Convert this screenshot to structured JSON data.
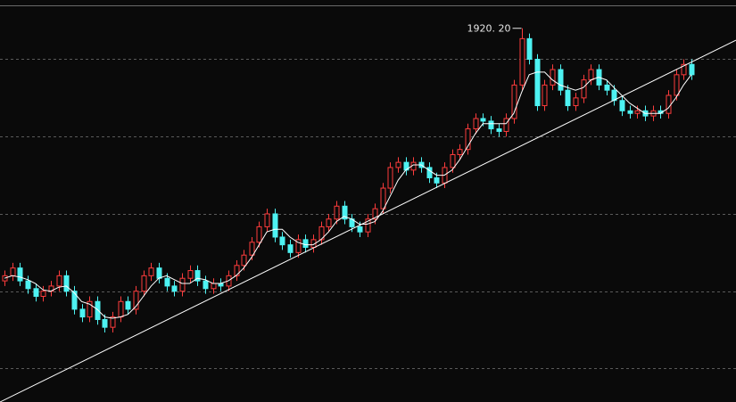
{
  "chart_data": {
    "type": "candlestick",
    "peak_label": "1920. 20",
    "peak_index": 67,
    "xlim": [
      -0.58,
      94.8
    ],
    "ylim": [
      470,
      2030
    ],
    "yticks": [
      600,
      900,
      1200,
      1500,
      1800
    ],
    "grid": true,
    "up_color": "#ff3c3c",
    "down_color": "#4df2f2",
    "line_color": "#ffffff",
    "open": [
      940,
      960,
      990,
      940,
      910,
      880,
      900,
      920,
      960,
      900,
      830,
      800,
      860,
      790,
      760,
      800,
      860,
      830,
      900,
      960,
      990,
      950,
      920,
      900,
      950,
      980,
      940,
      910,
      930,
      920,
      960,
      1000,
      1040,
      1090,
      1150,
      1200,
      1110,
      1080,
      1050,
      1100,
      1070,
      1100,
      1150,
      1180,
      1230,
      1180,
      1150,
      1130,
      1180,
      1220,
      1300,
      1380,
      1400,
      1370,
      1400,
      1380,
      1340,
      1320,
      1380,
      1430,
      1450,
      1530,
      1570,
      1560,
      1530,
      1520,
      1570,
      1700,
      1880,
      1800,
      1620,
      1700,
      1760,
      1680,
      1620,
      1650,
      1720,
      1760,
      1700,
      1680,
      1640,
      1600,
      1590,
      1600,
      1580,
      1600,
      1590,
      1660,
      1740,
      1780
    ],
    "high": [
      980,
      1010,
      1010,
      960,
      930,
      920,
      940,
      980,
      980,
      920,
      850,
      880,
      880,
      810,
      820,
      880,
      880,
      920,
      980,
      1010,
      1010,
      970,
      940,
      970,
      1000,
      1000,
      960,
      950,
      950,
      980,
      1020,
      1060,
      1110,
      1170,
      1220,
      1220,
      1130,
      1100,
      1120,
      1120,
      1120,
      1170,
      1200,
      1250,
      1250,
      1200,
      1170,
      1200,
      1240,
      1320,
      1400,
      1420,
      1420,
      1420,
      1420,
      1400,
      1360,
      1400,
      1450,
      1470,
      1550,
      1590,
      1590,
      1580,
      1550,
      1590,
      1720,
      1920.2,
      1900,
      1820,
      1720,
      1780,
      1780,
      1700,
      1670,
      1740,
      1780,
      1780,
      1720,
      1700,
      1660,
      1620,
      1620,
      1620,
      1620,
      1620,
      1680,
      1760,
      1800,
      1800
    ],
    "low": [
      920,
      940,
      920,
      890,
      860,
      860,
      880,
      900,
      880,
      810,
      780,
      780,
      770,
      740,
      740,
      780,
      810,
      810,
      880,
      940,
      930,
      900,
      880,
      880,
      930,
      920,
      890,
      890,
      900,
      900,
      940,
      980,
      1020,
      1070,
      1130,
      1090,
      1060,
      1030,
      1030,
      1050,
      1050,
      1080,
      1130,
      1160,
      1160,
      1130,
      1110,
      1110,
      1160,
      1200,
      1280,
      1360,
      1350,
      1350,
      1360,
      1320,
      1300,
      1300,
      1360,
      1410,
      1430,
      1510,
      1540,
      1510,
      1500,
      1500,
      1550,
      1680,
      1780,
      1600,
      1600,
      1680,
      1660,
      1600,
      1600,
      1630,
      1700,
      1680,
      1660,
      1620,
      1580,
      1570,
      1570,
      1560,
      1560,
      1570,
      1570,
      1640,
      1720,
      1720
    ],
    "close": [
      960,
      990,
      940,
      910,
      880,
      900,
      920,
      960,
      900,
      830,
      800,
      860,
      790,
      760,
      800,
      860,
      830,
      900,
      960,
      990,
      950,
      920,
      900,
      950,
      980,
      940,
      910,
      930,
      920,
      960,
      1000,
      1040,
      1090,
      1150,
      1200,
      1110,
      1080,
      1050,
      1100,
      1070,
      1100,
      1150,
      1180,
      1230,
      1180,
      1150,
      1130,
      1180,
      1220,
      1300,
      1380,
      1400,
      1370,
      1400,
      1380,
      1340,
      1320,
      1380,
      1430,
      1450,
      1530,
      1570,
      1560,
      1530,
      1520,
      1570,
      1700,
      1880,
      1800,
      1620,
      1700,
      1760,
      1680,
      1620,
      1650,
      1720,
      1760,
      1700,
      1680,
      1640,
      1600,
      1590,
      1600,
      1580,
      1600,
      1590,
      1660,
      1740,
      1780,
      1740
    ],
    "ma": [
      950,
      960,
      955,
      945,
      930,
      905,
      900,
      915,
      920,
      895,
      860,
      850,
      830,
      800,
      795,
      800,
      810,
      840,
      880,
      920,
      950,
      960,
      945,
      930,
      930,
      950,
      945,
      930,
      930,
      940,
      960,
      990,
      1030,
      1080,
      1130,
      1140,
      1140,
      1110,
      1090,
      1080,
      1080,
      1100,
      1130,
      1170,
      1190,
      1180,
      1160,
      1160,
      1170,
      1210,
      1270,
      1330,
      1370,
      1390,
      1390,
      1370,
      1350,
      1350,
      1370,
      1410,
      1460,
      1510,
      1550,
      1550,
      1550,
      1550,
      1590,
      1670,
      1740,
      1750,
      1750,
      1720,
      1700,
      1690,
      1680,
      1690,
      1720,
      1730,
      1720,
      1690,
      1660,
      1630,
      1610,
      1590,
      1590,
      1590,
      1610,
      1650,
      1700,
      1740
    ],
    "trendline": {
      "x": [
        -0.58,
        94.8
      ],
      "values": [
        470,
        1874
      ]
    }
  }
}
